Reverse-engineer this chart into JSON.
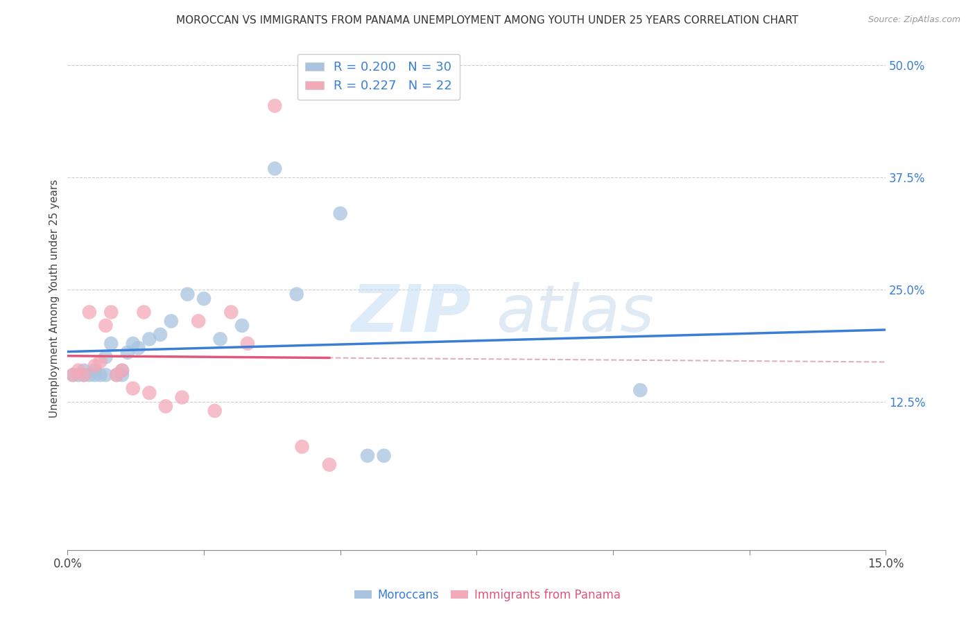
{
  "title": "MOROCCAN VS IMMIGRANTS FROM PANAMA UNEMPLOYMENT AMONG YOUTH UNDER 25 YEARS CORRELATION CHART",
  "source": "Source: ZipAtlas.com",
  "ylabel": "Unemployment Among Youth under 25 years",
  "xlim": [
    0.0,
    0.15
  ],
  "ylim": [
    -0.04,
    0.52
  ],
  "yticks": [
    0.125,
    0.25,
    0.375,
    0.5
  ],
  "ytick_labels": [
    "12.5%",
    "25.0%",
    "37.5%",
    "50.0%"
  ],
  "xticks": [
    0.0,
    0.025,
    0.05,
    0.075,
    0.1,
    0.125,
    0.15
  ],
  "xtick_labels": [
    "0.0%",
    "",
    "",
    "",
    "",
    "",
    "15.0%"
  ],
  "moroccan_color": "#a8c4e0",
  "panama_color": "#f4a9b8",
  "moroccan_line_color": "#3a7fd5",
  "panama_line_color": "#e05878",
  "dashed_line_color": "#e0b0bb",
  "watermark_zip": "ZIP",
  "watermark_atlas": "atlas",
  "moroccan_x": [
    0.001,
    0.002,
    0.003,
    0.003,
    0.004,
    0.005,
    0.005,
    0.006,
    0.007,
    0.007,
    0.008,
    0.009,
    0.01,
    0.01,
    0.011,
    0.012,
    0.013,
    0.015,
    0.017,
    0.019,
    0.022,
    0.025,
    0.028,
    0.032,
    0.038,
    0.042,
    0.05,
    0.055,
    0.058,
    0.105
  ],
  "moroccan_y": [
    0.155,
    0.155,
    0.155,
    0.16,
    0.155,
    0.16,
    0.155,
    0.155,
    0.155,
    0.175,
    0.19,
    0.155,
    0.16,
    0.155,
    0.18,
    0.19,
    0.185,
    0.195,
    0.2,
    0.215,
    0.245,
    0.24,
    0.195,
    0.21,
    0.385,
    0.245,
    0.335,
    0.065,
    0.065,
    0.138
  ],
  "panama_x": [
    0.001,
    0.002,
    0.003,
    0.004,
    0.005,
    0.006,
    0.007,
    0.008,
    0.009,
    0.01,
    0.012,
    0.014,
    0.015,
    0.018,
    0.021,
    0.024,
    0.027,
    0.03,
    0.033,
    0.038,
    0.043,
    0.048
  ],
  "panama_y": [
    0.155,
    0.16,
    0.155,
    0.225,
    0.165,
    0.17,
    0.21,
    0.225,
    0.155,
    0.16,
    0.14,
    0.225,
    0.135,
    0.12,
    0.13,
    0.215,
    0.115,
    0.225,
    0.19,
    0.455,
    0.075,
    0.055
  ],
  "moroccan_r": "0.200",
  "moroccan_n": "30",
  "panama_r": "0.227",
  "panama_n": "22"
}
